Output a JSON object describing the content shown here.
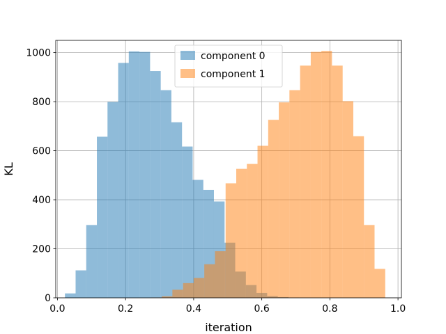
{
  "chart_data": {
    "type": "bar",
    "xlabel": "iteration",
    "ylabel": "KL",
    "xlim": [
      -0.005,
      1.01
    ],
    "ylim": [
      0,
      1050
    ],
    "grid": true,
    "legend_position": "top-center",
    "x_ticks": [
      {
        "value": 0.0,
        "label": "0.0"
      },
      {
        "value": 0.2,
        "label": "0.2"
      },
      {
        "value": 0.4,
        "label": "0.4"
      },
      {
        "value": 0.6,
        "label": "0.6"
      },
      {
        "value": 0.8,
        "label": "0.8"
      },
      {
        "value": 1.0,
        "label": "1.0"
      }
    ],
    "y_ticks": [
      {
        "value": 0,
        "label": "0"
      },
      {
        "value": 200,
        "label": "200"
      },
      {
        "value": 400,
        "label": "400"
      },
      {
        "value": 600,
        "label": "600"
      },
      {
        "value": 800,
        "label": "800"
      },
      {
        "value": 1000,
        "label": "1000"
      }
    ],
    "series": [
      {
        "name": "component 0",
        "color": "#1f77b4",
        "alpha": 0.5,
        "bin_edges": [
          0.022,
          0.0533,
          0.0845,
          0.1158,
          0.147,
          0.1783,
          0.2095,
          0.2408,
          0.272,
          0.3033,
          0.3345,
          0.3658,
          0.397,
          0.4283,
          0.4595,
          0.4908,
          0.522,
          0.5533,
          0.5845,
          0.6158,
          0.647,
          0.6783,
          0.7095
        ],
        "counts": [
          18,
          112,
          297,
          657,
          799,
          958,
          1005,
          1003,
          925,
          847,
          716,
          617,
          481,
          440,
          393,
          225,
          107,
          52,
          20,
          7,
          3,
          1
        ]
      },
      {
        "name": "component 1",
        "color": "#ff7f0e",
        "alpha": 0.5,
        "bin_edges": [
          0.275,
          0.3062,
          0.3375,
          0.3688,
          0.4,
          0.4312,
          0.4625,
          0.4938,
          0.525,
          0.5562,
          0.5875,
          0.6188,
          0.65,
          0.6812,
          0.7125,
          0.7438,
          0.775,
          0.8062,
          0.8375,
          0.8688,
          0.9,
          0.9312,
          0.9625
        ],
        "counts": [
          1,
          6,
          33,
          60,
          81,
          137,
          190,
          467,
          526,
          546,
          620,
          726,
          797,
          847,
          947,
          1003,
          1007,
          947,
          802,
          659,
          297,
          118
        ]
      }
    ]
  }
}
